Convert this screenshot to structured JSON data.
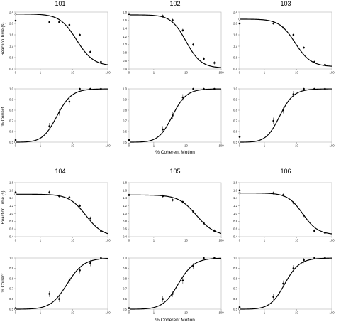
{
  "figure": {
    "panel_titles": [
      "101",
      "102",
      "103",
      "104",
      "105",
      "106"
    ],
    "rt_ylabel": "Reaction Time (s)",
    "pc_ylabel": "% Correct",
    "xlabel": "% Coherent Motion"
  },
  "chart_data": [
    {
      "type": "scatter",
      "subject": "101",
      "measure": "reaction_time",
      "title": "101",
      "ylabel": "Reaction Time (s)",
      "xlabel": "",
      "x_scale": "log",
      "x_ticks": [
        "0",
        "1",
        "10",
        "100"
      ],
      "ylim": [
        0.4,
        2.4
      ],
      "y_ticks": [
        "0.4",
        "0.8",
        "1.2",
        "1.6",
        "2.0",
        "2.4"
      ],
      "points": [
        {
          "x": 0,
          "y": 2.1
        },
        {
          "x": 2,
          "y": 2.05
        },
        {
          "x": 4,
          "y": 2.05
        },
        {
          "x": 8,
          "y": 1.95
        },
        {
          "x": 16,
          "y": 1.6
        },
        {
          "x": 32,
          "y": 1.0
        },
        {
          "x": 64,
          "y": 0.65
        }
      ],
      "fit": {
        "top": 2.33,
        "bottom": 0.5,
        "mid": 13,
        "slope": 1.8
      }
    },
    {
      "type": "scatter",
      "subject": "101",
      "measure": "percent_correct",
      "ylabel": "% Correct",
      "xlabel": "",
      "x_scale": "log",
      "x_ticks": [
        "0",
        "1",
        "10",
        "100"
      ],
      "ylim": [
        0.5,
        1.0
      ],
      "y_ticks": [
        "0.5",
        "0.6",
        "0.7",
        "0.8",
        "0.9",
        "1.0"
      ],
      "points": [
        {
          "x": 0,
          "y": 0.52
        },
        {
          "x": 2,
          "y": 0.65
        },
        {
          "x": 4,
          "y": 0.78
        },
        {
          "x": 8,
          "y": 0.88
        },
        {
          "x": 16,
          "y": 1.0
        },
        {
          "x": 32,
          "y": 1.0
        },
        {
          "x": 64,
          "y": 1.0
        }
      ],
      "fit": {
        "top": 1.0,
        "bottom": 0.5,
        "mid": 3.5,
        "slope": 2.0
      }
    },
    {
      "type": "scatter",
      "subject": "102",
      "measure": "reaction_time",
      "title": "102",
      "ylabel": "",
      "xlabel": "",
      "x_scale": "log",
      "x_ticks": [
        "0",
        "1",
        "10",
        "100"
      ],
      "ylim": [
        0.4,
        1.8
      ],
      "y_ticks": [
        "0.4",
        "0.6",
        "0.8",
        "1.0",
        "1.2",
        "1.4",
        "1.6",
        "1.8"
      ],
      "points": [
        {
          "x": 0,
          "y": 1.75
        },
        {
          "x": 2,
          "y": 1.7
        },
        {
          "x": 4,
          "y": 1.6
        },
        {
          "x": 8,
          "y": 1.35
        },
        {
          "x": 16,
          "y": 1.0
        },
        {
          "x": 32,
          "y": 0.65
        },
        {
          "x": 64,
          "y": 0.55
        }
      ],
      "fit": {
        "top": 1.73,
        "bottom": 0.42,
        "mid": 10,
        "slope": 2.0
      }
    },
    {
      "type": "scatter",
      "subject": "102",
      "measure": "percent_correct",
      "ylabel": "",
      "xlabel": "",
      "x_scale": "log",
      "x_ticks": [
        "0",
        "1",
        "10",
        "100"
      ],
      "ylim": [
        0.5,
        1.0
      ],
      "y_ticks": [
        "0.5",
        "0.6",
        "0.7",
        "0.8",
        "0.9",
        "1.0"
      ],
      "points": [
        {
          "x": 0,
          "y": 0.52
        },
        {
          "x": 2,
          "y": 0.62
        },
        {
          "x": 4,
          "y": 0.75
        },
        {
          "x": 8,
          "y": 0.92
        },
        {
          "x": 16,
          "y": 1.0
        },
        {
          "x": 32,
          "y": 1.0
        },
        {
          "x": 64,
          "y": 1.0
        }
      ],
      "fit": {
        "top": 1.0,
        "bottom": 0.5,
        "mid": 4.0,
        "slope": 2.1
      }
    },
    {
      "type": "scatter",
      "subject": "103",
      "measure": "reaction_time",
      "title": "103",
      "ylabel": "",
      "xlabel": "",
      "x_scale": "log",
      "x_ticks": [
        "0",
        "1",
        "10",
        "100"
      ],
      "ylim": [
        0.4,
        2.4
      ],
      "y_ticks": [
        "0.4",
        "0.8",
        "1.2",
        "1.6",
        "2.0",
        "2.4"
      ],
      "points": [
        {
          "x": 0,
          "y": 2.0
        },
        {
          "x": 2,
          "y": 2.0
        },
        {
          "x": 4,
          "y": 1.85
        },
        {
          "x": 8,
          "y": 1.6
        },
        {
          "x": 16,
          "y": 1.15
        },
        {
          "x": 32,
          "y": 0.65
        },
        {
          "x": 64,
          "y": 0.55
        }
      ],
      "fit": {
        "top": 2.15,
        "bottom": 0.48,
        "mid": 9,
        "slope": 1.9
      }
    },
    {
      "type": "scatter",
      "subject": "103",
      "measure": "percent_correct",
      "ylabel": "",
      "xlabel": "",
      "x_scale": "log",
      "x_ticks": [
        "0",
        "1",
        "10",
        "100"
      ],
      "ylim": [
        0.5,
        1.0
      ],
      "y_ticks": [
        "0.5",
        "0.6",
        "0.7",
        "0.8",
        "0.9",
        "1.0"
      ],
      "points": [
        {
          "x": 0,
          "y": 0.55
        },
        {
          "x": 2,
          "y": 0.7
        },
        {
          "x": 4,
          "y": 0.8
        },
        {
          "x": 8,
          "y": 0.95
        },
        {
          "x": 16,
          "y": 1.0
        },
        {
          "x": 32,
          "y": 1.0
        },
        {
          "x": 64,
          "y": 1.0
        }
      ],
      "fit": {
        "top": 1.0,
        "bottom": 0.5,
        "mid": 3.2,
        "slope": 2.1
      }
    },
    {
      "type": "scatter",
      "subject": "104",
      "measure": "reaction_time",
      "title": "104",
      "ylabel": "Reaction Time (s)",
      "xlabel": "",
      "x_scale": "log",
      "x_ticks": [
        "0",
        "1",
        "10",
        "100"
      ],
      "ylim": [
        0.4,
        1.8
      ],
      "y_ticks": [
        "0.4",
        "0.6",
        "0.8",
        "1.0",
        "1.2",
        "1.4",
        "1.6",
        "1.8"
      ],
      "points": [
        {
          "x": 0,
          "y": 1.55
        },
        {
          "x": 2,
          "y": 1.55
        },
        {
          "x": 4,
          "y": 1.45
        },
        {
          "x": 8,
          "y": 1.42
        },
        {
          "x": 16,
          "y": 1.2
        },
        {
          "x": 32,
          "y": 0.88
        },
        {
          "x": 64,
          "y": 0.55
        }
      ],
      "fit": {
        "top": 1.5,
        "bottom": 0.4,
        "mid": 24,
        "slope": 1.8
      }
    },
    {
      "type": "scatter",
      "subject": "104",
      "measure": "percent_correct",
      "ylabel": "% Correct",
      "xlabel": "",
      "x_scale": "log",
      "x_ticks": [
        "0",
        "1",
        "10",
        "100"
      ],
      "ylim": [
        0.5,
        1.0
      ],
      "y_ticks": [
        "0.5",
        "0.6",
        "0.7",
        "0.8",
        "0.9",
        "1.0"
      ],
      "points": [
        {
          "x": 0,
          "y": 0.51
        },
        {
          "x": 2,
          "y": 0.65
        },
        {
          "x": 4,
          "y": 0.6
        },
        {
          "x": 8,
          "y": 0.78
        },
        {
          "x": 16,
          "y": 0.88
        },
        {
          "x": 32,
          "y": 0.95
        },
        {
          "x": 64,
          "y": 1.0
        }
      ],
      "fit": {
        "top": 1.0,
        "bottom": 0.5,
        "mid": 7.0,
        "slope": 1.8
      }
    },
    {
      "type": "scatter",
      "subject": "105",
      "measure": "reaction_time",
      "title": "105",
      "ylabel": "",
      "xlabel": "",
      "x_scale": "log",
      "x_ticks": [
        "0",
        "1",
        "10",
        "100"
      ],
      "ylim": [
        0.4,
        1.8
      ],
      "y_ticks": [
        "0.4",
        "0.6",
        "0.8",
        "1.0",
        "1.2",
        "1.4",
        "1.6",
        "1.8"
      ],
      "points": [
        {
          "x": 0,
          "y": 1.48
        },
        {
          "x": 2,
          "y": 1.45
        },
        {
          "x": 4,
          "y": 1.35
        },
        {
          "x": 8,
          "y": 1.3
        },
        {
          "x": 16,
          "y": 1.05
        },
        {
          "x": 32,
          "y": 0.75
        },
        {
          "x": 64,
          "y": 0.55
        }
      ],
      "fit": {
        "top": 1.48,
        "bottom": 0.42,
        "mid": 20,
        "slope": 1.7
      }
    },
    {
      "type": "scatter",
      "subject": "105",
      "measure": "percent_correct",
      "ylabel": "",
      "xlabel": "",
      "x_scale": "log",
      "x_ticks": [
        "0",
        "1",
        "10",
        "100"
      ],
      "ylim": [
        0.5,
        1.0
      ],
      "y_ticks": [
        "0.5",
        "0.6",
        "0.7",
        "0.8",
        "0.9",
        "1.0"
      ],
      "points": [
        {
          "x": 0,
          "y": 0.51
        },
        {
          "x": 2,
          "y": 0.6
        },
        {
          "x": 4,
          "y": 0.65
        },
        {
          "x": 8,
          "y": 0.78
        },
        {
          "x": 16,
          "y": 0.92
        },
        {
          "x": 32,
          "y": 1.0
        },
        {
          "x": 64,
          "y": 1.0
        }
      ],
      "fit": {
        "top": 1.0,
        "bottom": 0.5,
        "mid": 6.0,
        "slope": 1.9
      }
    },
    {
      "type": "scatter",
      "subject": "106",
      "measure": "reaction_time",
      "title": "106",
      "ylabel": "",
      "xlabel": "",
      "x_scale": "log",
      "x_ticks": [
        "0",
        "1",
        "10",
        "100"
      ],
      "ylim": [
        0.4,
        1.8
      ],
      "y_ticks": [
        "0.4",
        "0.6",
        "0.8",
        "1.0",
        "1.2",
        "1.4",
        "1.6",
        "1.8"
      ],
      "points": [
        {
          "x": 0,
          "y": 1.6
        },
        {
          "x": 2,
          "y": 1.53
        },
        {
          "x": 4,
          "y": 1.48
        },
        {
          "x": 8,
          "y": 1.28
        },
        {
          "x": 16,
          "y": 0.95
        },
        {
          "x": 32,
          "y": 0.55
        },
        {
          "x": 64,
          "y": 0.5
        }
      ],
      "fit": {
        "top": 1.53,
        "bottom": 0.45,
        "mid": 15,
        "slope": 2.0
      }
    },
    {
      "type": "scatter",
      "subject": "106",
      "measure": "percent_correct",
      "ylabel": "",
      "xlabel": "",
      "x_scale": "log",
      "x_ticks": [
        "0",
        "1",
        "10",
        "100"
      ],
      "ylim": [
        0.5,
        1.0
      ],
      "y_ticks": [
        "0.5",
        "0.6",
        "0.7",
        "0.8",
        "0.9",
        "1.0"
      ],
      "points": [
        {
          "x": 0,
          "y": 0.52
        },
        {
          "x": 2,
          "y": 0.62
        },
        {
          "x": 4,
          "y": 0.75
        },
        {
          "x": 8,
          "y": 0.9
        },
        {
          "x": 16,
          "y": 0.98
        },
        {
          "x": 32,
          "y": 1.0
        },
        {
          "x": 64,
          "y": 1.0
        }
      ],
      "fit": {
        "top": 1.0,
        "bottom": 0.5,
        "mid": 4.5,
        "slope": 2.0
      }
    }
  ]
}
